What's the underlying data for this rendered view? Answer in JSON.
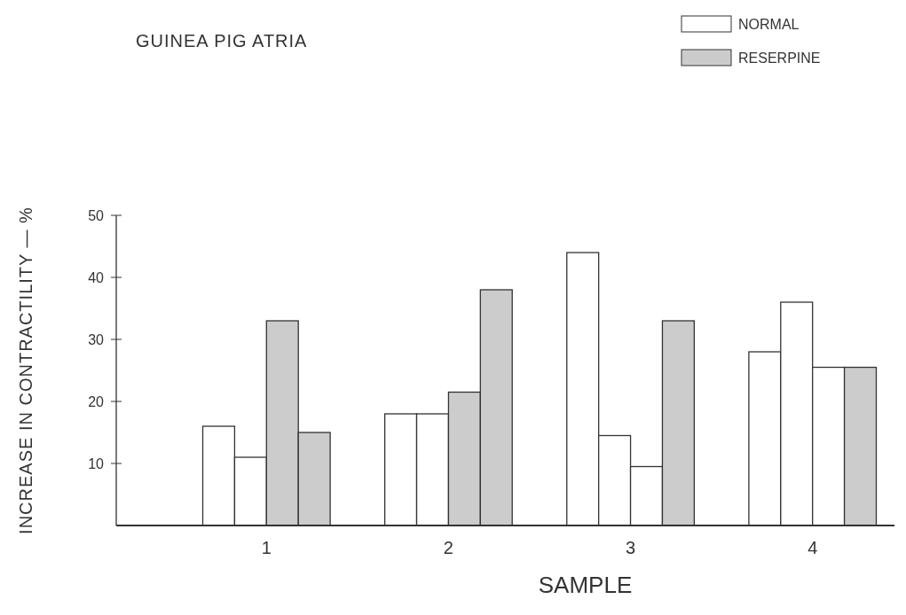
{
  "chart_data": {
    "type": "bar",
    "title": "GUINEA PIG ATRIA",
    "xlabel": "SAMPLE",
    "ylabel": "INCREASE IN CONTRACTILITY — %",
    "categories": [
      "1",
      "2",
      "3",
      "4"
    ],
    "series": [
      {
        "name": "NORMAL",
        "color": "#ffffff",
        "values": [
          16,
          18,
          44,
          28
        ]
      },
      {
        "color": "#ffffff",
        "values": [
          11,
          18,
          14.5,
          36
        ]
      },
      {
        "colors": [
          "#cccccc",
          "#cccccc",
          "#ffffff",
          "#ffffff"
        ],
        "values": [
          33,
          21.5,
          9.5,
          25.5
        ]
      },
      {
        "name": "RESERPINE",
        "color": "#cccccc",
        "values": [
          15,
          38,
          33,
          25.5
        ]
      }
    ],
    "ylim": [
      0,
      50
    ],
    "yticks": [
      10,
      20,
      30,
      40,
      50
    ],
    "grid": false,
    "legend": "top right"
  }
}
